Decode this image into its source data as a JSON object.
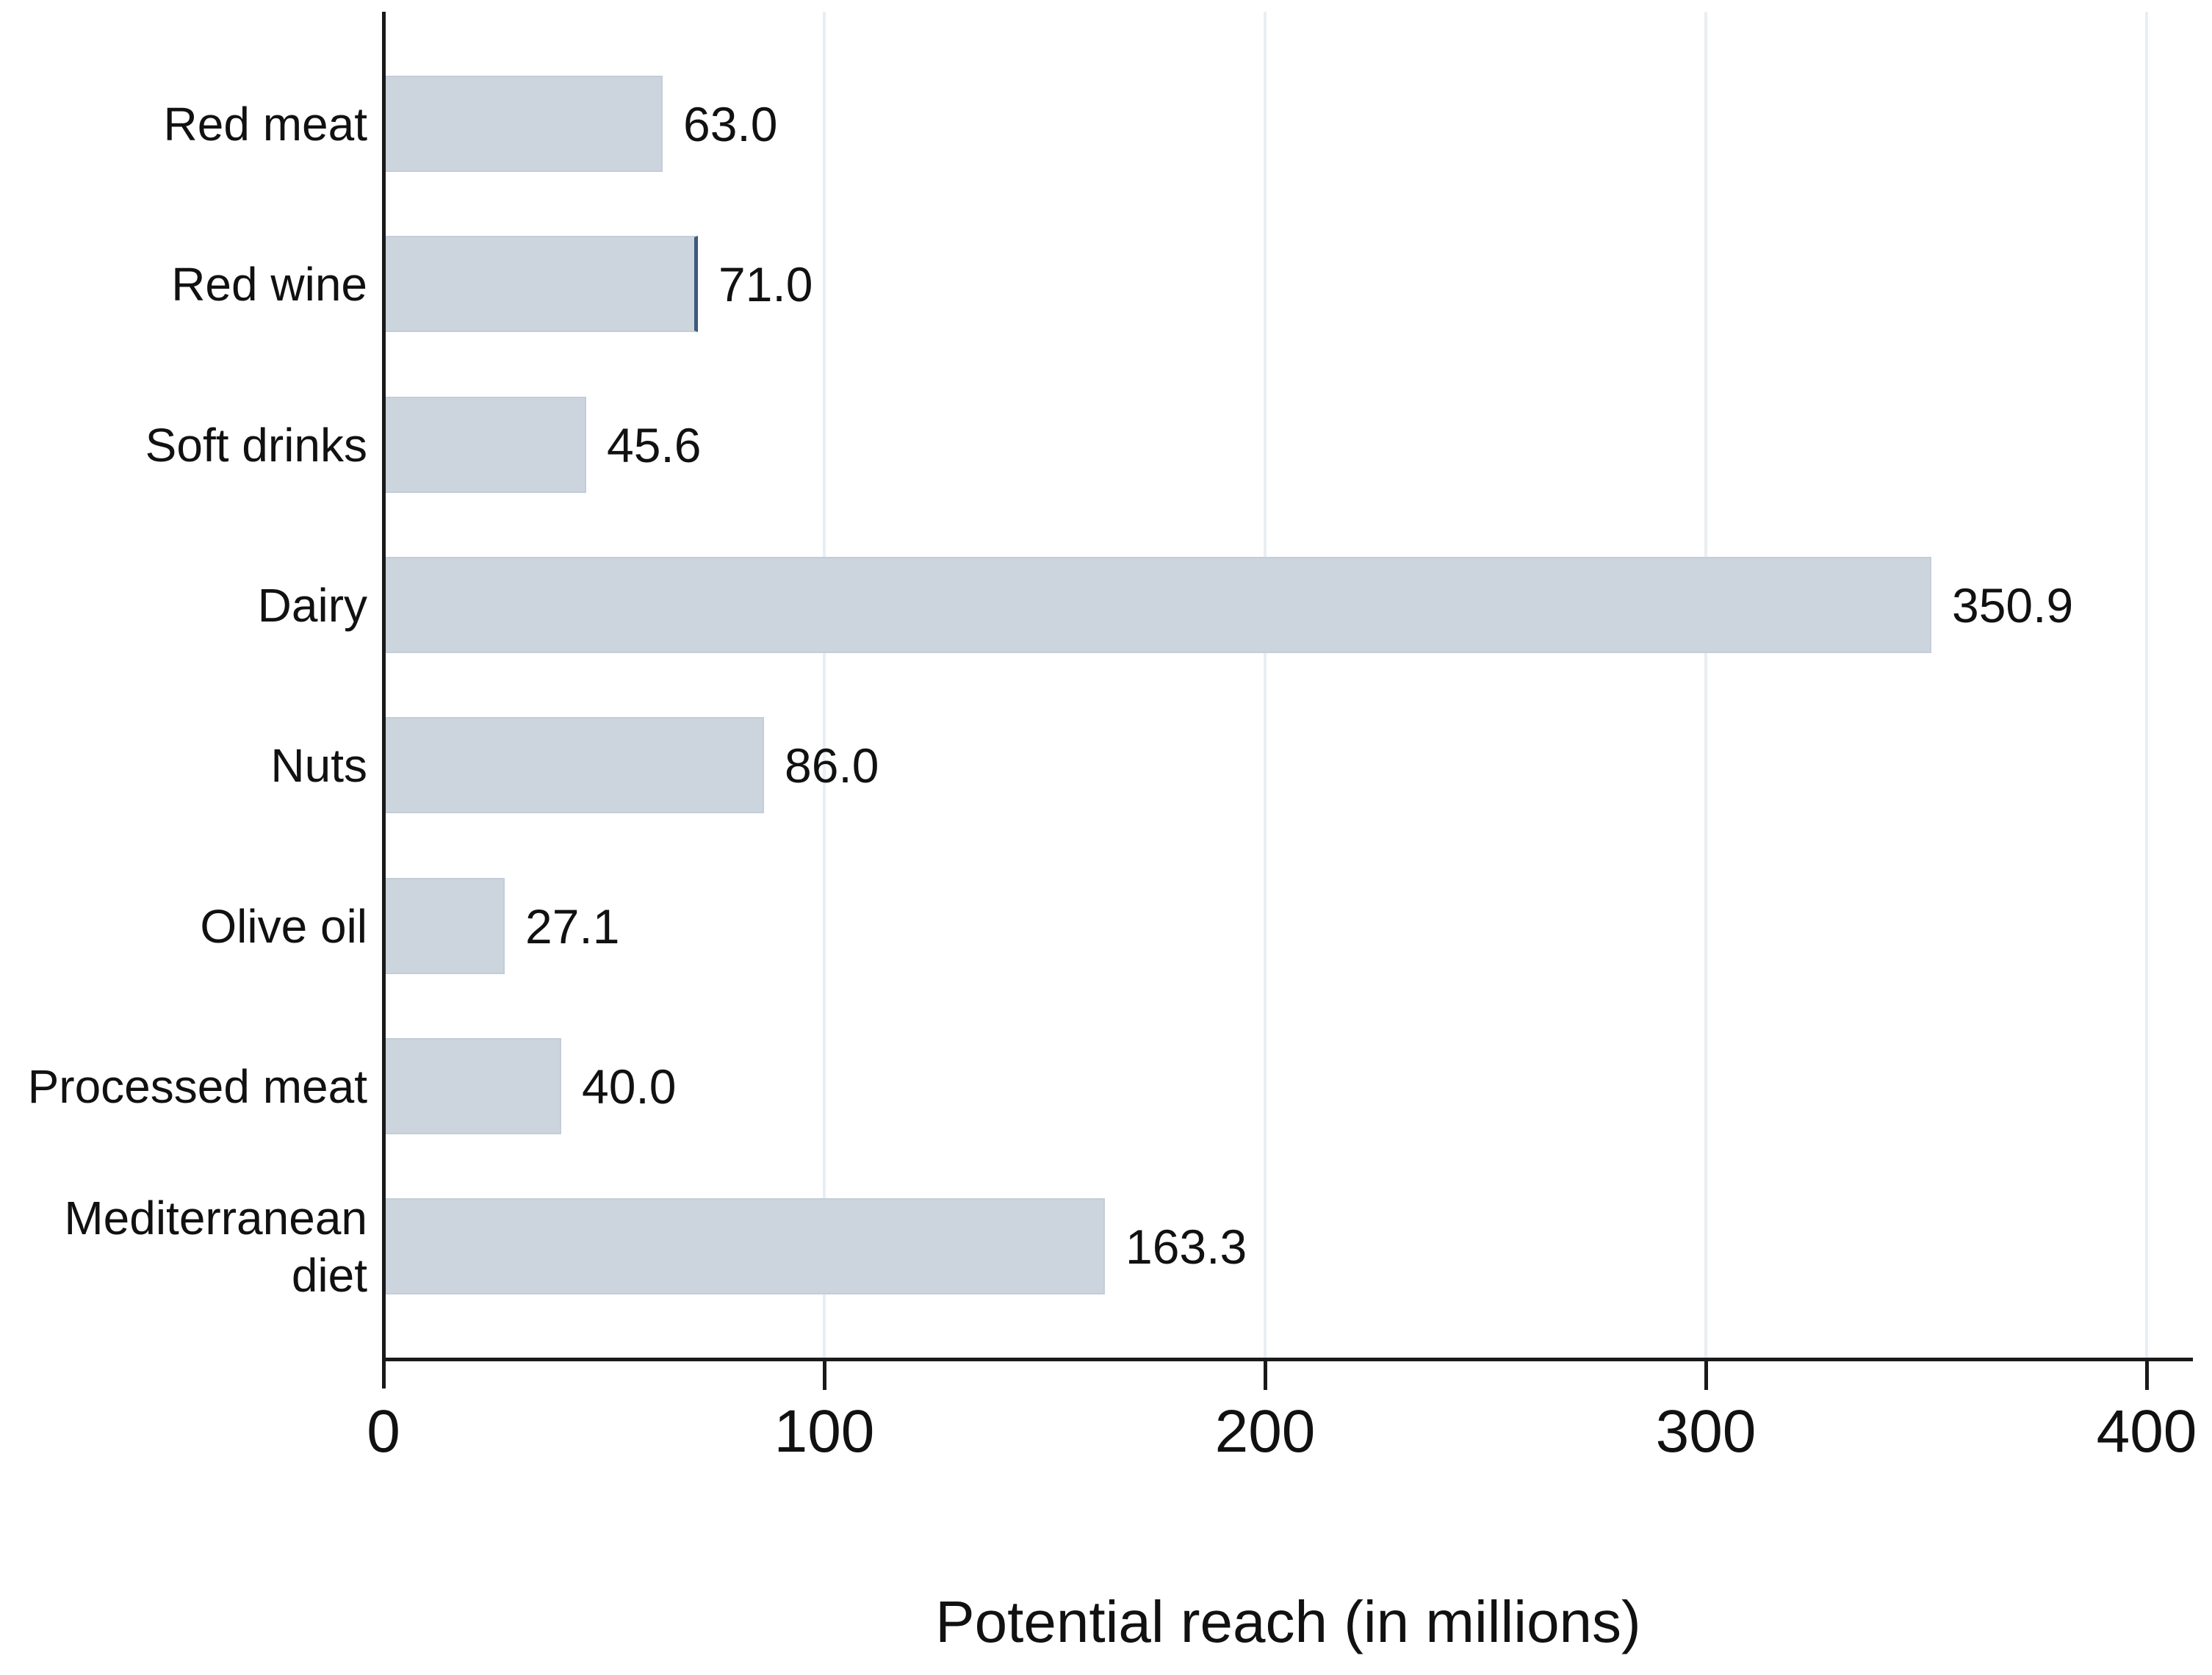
{
  "chart_data": {
    "type": "bar",
    "orientation": "horizontal",
    "title": "",
    "xlabel": "Potential reach (in millions)",
    "ylabel": "",
    "categories": [
      "Red meat",
      "Red wine",
      "Soft drinks",
      "Dairy",
      "Nuts",
      "Olive oil",
      "Processed meat",
      "Mediterranean diet"
    ],
    "category_display_lines": [
      [
        "Red meat"
      ],
      [
        "Red wine"
      ],
      [
        "Soft drinks"
      ],
      [
        "Dairy"
      ],
      [
        "Nuts"
      ],
      [
        "Olive oil"
      ],
      [
        "Processed meat"
      ],
      [
        "Mediterranean",
        "diet"
      ]
    ],
    "values": [
      63.0,
      71.0,
      45.6,
      350.9,
      86.0,
      27.1,
      40.0,
      163.3
    ],
    "value_labels": [
      "63.0",
      "71.0",
      "45.6",
      "350.9",
      "86.0",
      "27.1",
      "40.0",
      "163.3"
    ],
    "x_ticks": [
      0,
      100,
      200,
      300,
      400
    ],
    "x_tick_labels": [
      "0",
      "100",
      "200",
      "300",
      "400"
    ],
    "xlim": [
      0,
      410
    ],
    "grid": "vertical-light-gridlines-at-ticks",
    "legend": "none",
    "bar_edge_highlight_category": "Red wine"
  },
  "colors": {
    "background": "#ffffff",
    "bar_fill": "#ccd4de",
    "bar_border": "#c4cdd8",
    "bar_edge_highlight": "#3d5a7d",
    "gridline": "#e9eef3",
    "axis": "#1a1a1a",
    "text": "#111111"
  }
}
